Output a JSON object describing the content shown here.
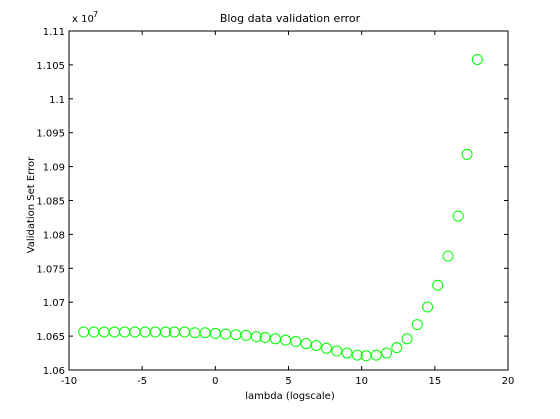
{
  "chart_data": {
    "type": "scatter",
    "title": "Blog data validation error",
    "xlabel": "lambda (logscale)",
    "ylabel": "Validation Set Error",
    "xlim": [
      -10,
      20
    ],
    "ylim": [
      1.06,
      1.11
    ],
    "y_multiplier_label": "x 10",
    "y_multiplier_exponent": "7",
    "xticks": [
      -10,
      -5,
      0,
      5,
      10,
      15,
      20
    ],
    "xtick_labels": [
      "-10",
      "-5",
      "0",
      "5",
      "10",
      "15",
      "20"
    ],
    "yticks": [
      1.06,
      1.065,
      1.07,
      1.075,
      1.08,
      1.085,
      1.09,
      1.095,
      1.1,
      1.105,
      1.11
    ],
    "ytick_labels": [
      "1.06",
      "1.065",
      "1.07",
      "1.075",
      "1.08",
      "1.085",
      "1.09",
      "1.095",
      "1.1",
      "1.105",
      "1.11"
    ],
    "grid": false,
    "marker_color": "#00ff00",
    "marker": "circle",
    "x": [
      -9.0,
      -8.3,
      -7.6,
      -6.9,
      -6.2,
      -5.5,
      -4.8,
      -4.1,
      -3.4,
      -2.8,
      -2.1,
      -1.4,
      -0.7,
      0.0,
      0.7,
      1.4,
      2.1,
      2.8,
      3.4,
      4.1,
      4.8,
      5.5,
      6.2,
      6.9,
      7.6,
      8.3,
      9.0,
      9.7,
      10.3,
      11.0,
      11.7,
      12.4,
      13.1,
      13.8,
      14.5,
      15.2,
      15.9,
      16.6,
      17.2,
      17.9
    ],
    "y": [
      1.0656,
      1.0656,
      1.0656,
      1.0656,
      1.0656,
      1.0656,
      1.0656,
      1.0656,
      1.0656,
      1.0656,
      1.0656,
      1.0655,
      1.0655,
      1.0654,
      1.0653,
      1.0652,
      1.0651,
      1.0649,
      1.0648,
      1.0646,
      1.0644,
      1.0642,
      1.0639,
      1.0636,
      1.0632,
      1.0628,
      1.0625,
      1.0622,
      1.0621,
      1.0622,
      1.0625,
      1.0633,
      1.0646,
      1.0667,
      1.0693,
      1.0725,
      1.0768,
      1.0827,
      1.0918,
      1.1058
    ]
  }
}
